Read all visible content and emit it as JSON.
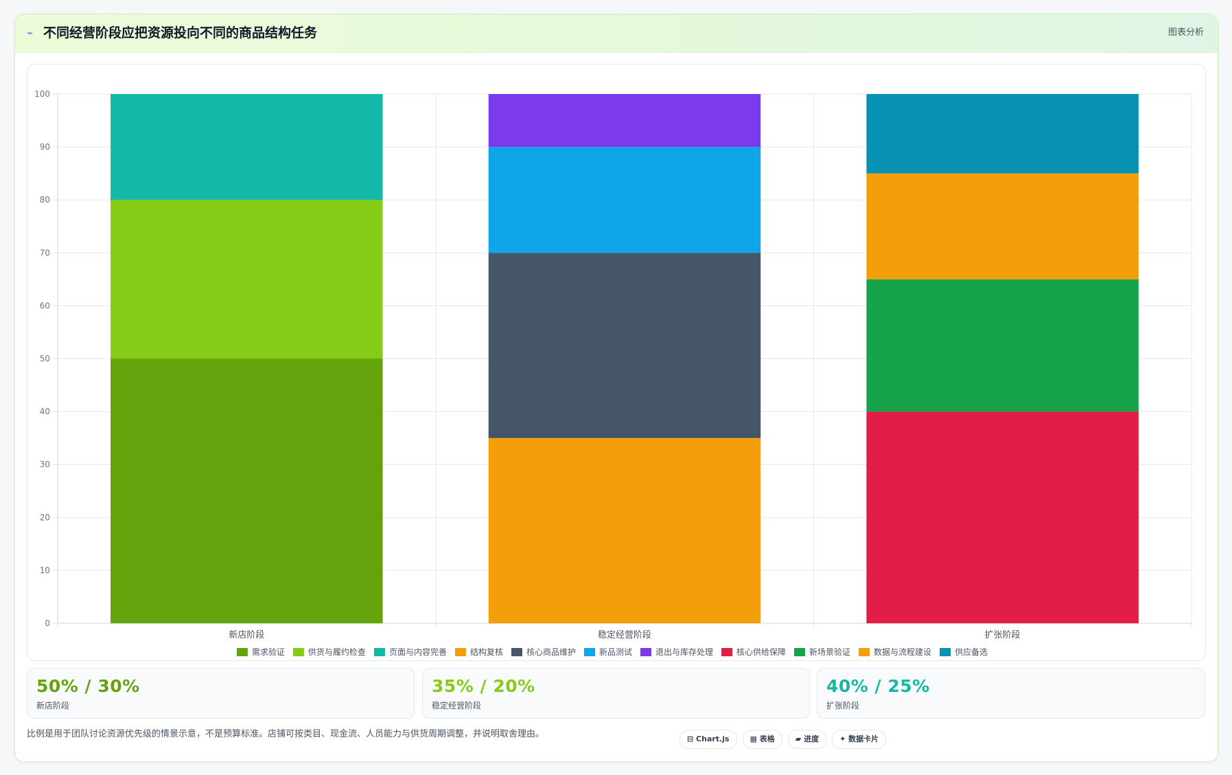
{
  "header": {
    "icon": "trend-line-icon",
    "title": "不同经营阶段应把资源投向不同的商品结构任务",
    "right_label": "图表分析"
  },
  "chart_data": {
    "type": "bar",
    "stacked": true,
    "categories": [
      "新店阶段",
      "稳定经营阶段",
      "扩张阶段"
    ],
    "ylim": [
      0,
      100
    ],
    "yticks": [
      "0",
      "10",
      "20",
      "30",
      "40",
      "50",
      "60",
      "70",
      "80",
      "90",
      "100"
    ],
    "grid": true,
    "legend_position": "bottom",
    "series": [
      {
        "name": "需求验证",
        "color": "#65a30d",
        "values": [
          50,
          0,
          0
        ]
      },
      {
        "name": "供货与履约检查",
        "color": "#84cc16",
        "values": [
          30,
          0,
          0
        ]
      },
      {
        "name": "页面与内容完善",
        "color": "#14b8a6",
        "values": [
          20,
          0,
          0
        ]
      },
      {
        "name": "结构复核",
        "color": "#f59e0b",
        "values": [
          0,
          35,
          0
        ]
      },
      {
        "name": "核心商品维护",
        "color": "#475569",
        "values": [
          0,
          35,
          0
        ]
      },
      {
        "name": "新品测试",
        "color": "#0ea5e9",
        "values": [
          0,
          20,
          0
        ]
      },
      {
        "name": "退出与库存处理",
        "color": "#7c3aed",
        "values": [
          0,
          10,
          0
        ]
      },
      {
        "name": "核心供给保障",
        "color": "#e11d48",
        "values": [
          0,
          0,
          40
        ]
      },
      {
        "name": "新场景验证",
        "color": "#16a34a",
        "values": [
          0,
          0,
          25
        ]
      },
      {
        "name": "数据与流程建设",
        "color": "#f59e0b",
        "values": [
          0,
          0,
          20
        ]
      },
      {
        "name": "供应备选",
        "color": "#0891b2",
        "values": [
          0,
          0,
          15
        ]
      }
    ]
  },
  "stats": [
    {
      "value": "50% / 30%",
      "label": "新店阶段",
      "color": "#65a30d"
    },
    {
      "value": "35% / 20%",
      "label": "稳定经营阶段",
      "color": "#84cc16"
    },
    {
      "value": "40% / 25%",
      "label": "扩张阶段",
      "color": "#14b8a6"
    }
  ],
  "footnote": "比例是用于团队讨论资源优先级的情景示意，不是预算标准。店铺可按类目、现金流、人员能力与供货周期调整，并说明取舍理由。",
  "chips": [
    {
      "label": "⊟ Chart.js",
      "icon": "chart-icon"
    },
    {
      "label": "▦ 表格",
      "icon": "table-icon"
    },
    {
      "label": "▰ 进度",
      "icon": "progress-icon"
    },
    {
      "label": "✦ 数据卡片",
      "icon": "sparkle-icon"
    }
  ]
}
